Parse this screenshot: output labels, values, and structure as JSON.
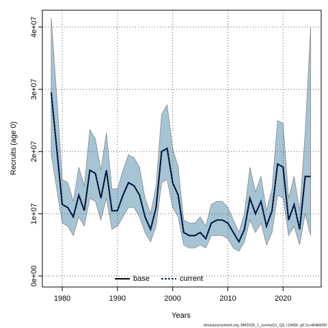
{
  "chart_data": {
    "type": "line",
    "xlabel": "Years",
    "ylabel": "Recruits (age 0)",
    "footnote": "stockassessment.org, BM2026_1_surveyQ1_Q3, r19456, git:1cc464b606f",
    "x": [
      1978,
      1979,
      1980,
      1981,
      1982,
      1983,
      1984,
      1985,
      1986,
      1987,
      1988,
      1989,
      1990,
      1991,
      1992,
      1993,
      1994,
      1995,
      1996,
      1997,
      1998,
      1999,
      2000,
      2001,
      2002,
      2003,
      2004,
      2005,
      2006,
      2007,
      2008,
      2009,
      2010,
      2011,
      2012,
      2013,
      2014,
      2015,
      2016,
      2017,
      2018,
      2019,
      2020,
      2021,
      2022,
      2023,
      2024,
      2025
    ],
    "series": [
      {
        "name": "base",
        "color": "#000000",
        "dashed": false,
        "values": [
          29500000.0,
          20500000.0,
          11500000.0,
          11000000.0,
          9500000.0,
          13000000.0,
          10500000.0,
          17000000.0,
          16500000.0,
          12500000.0,
          17000000.0,
          10500000.0,
          10500000.0,
          13000000.0,
          15000000.0,
          14500000.0,
          13000000.0,
          9500000.0,
          7500000.0,
          11000000.0,
          20000000.0,
          20500000.0,
          15000000.0,
          13000000.0,
          7000000.0,
          6500000.0,
          6500000.0,
          7000000.0,
          6000000.0,
          8500000.0,
          9000000.0,
          9000000.0,
          8500000.0,
          7000000.0,
          5500000.0,
          7500000.0,
          12500000.0,
          10000000.0,
          12000000.0,
          8000000.0,
          10500000.0,
          18000000.0,
          17500000.0,
          9000000.0,
          11500000.0,
          7500000.0,
          16000000.0,
          16000000.0
        ]
      },
      {
        "name": "current",
        "color": "#0a2a6e",
        "dashed": true,
        "values": [
          29500000.0,
          20500000.0,
          11500000.0,
          11000000.0,
          9500000.0,
          13000000.0,
          10500000.0,
          17000000.0,
          16500000.0,
          12500000.0,
          17000000.0,
          10500000.0,
          10500000.0,
          13000000.0,
          15000000.0,
          14500000.0,
          13000000.0,
          9500000.0,
          7500000.0,
          11000000.0,
          20000000.0,
          20500000.0,
          15000000.0,
          13000000.0,
          7000000.0,
          6500000.0,
          6500000.0,
          7000000.0,
          6000000.0,
          8500000.0,
          9000000.0,
          9000000.0,
          8500000.0,
          7000000.0,
          5500000.0,
          7500000.0,
          12500000.0,
          10000000.0,
          12000000.0,
          8000000.0,
          10500000.0,
          18000000.0,
          17500000.0,
          9000000.0,
          11500000.0,
          7500000.0,
          16000000.0,
          16000000.0
        ]
      }
    ],
    "band": {
      "color": "#a5c4d4",
      "upper": [
        41500000.0,
        29000000.0,
        15500000.0,
        15000000.0,
        12000000.0,
        17500000.0,
        14500000.0,
        23500000.0,
        22000000.0,
        17000000.0,
        23000000.0,
        14000000.0,
        14000000.0,
        17000000.0,
        19500000.0,
        19000000.0,
        17500000.0,
        12500000.0,
        10000000.0,
        14500000.0,
        26000000.0,
        27500000.0,
        20500000.0,
        17500000.0,
        9000000.0,
        8500000.0,
        8500000.0,
        9500000.0,
        8000000.0,
        11500000.0,
        12000000.0,
        12000000.0,
        11000000.0,
        9000000.0,
        7000000.0,
        10000000.0,
        17500000.0,
        13500000.0,
        16000000.0,
        10500000.0,
        14000000.0,
        25000000.0,
        24500000.0,
        12500000.0,
        16000000.0,
        10500000.0,
        23000000.0,
        40000000.0
      ],
      "lower": [
        19500000.0,
        14000000.0,
        8500000.0,
        8000000.0,
        6500000.0,
        9500000.0,
        8000000.0,
        12500000.0,
        12000000.0,
        9000000.0,
        12500000.0,
        7500000.0,
        8000000.0,
        9500000.0,
        11000000.0,
        11000000.0,
        9500000.0,
        7000000.0,
        5500000.0,
        8000000.0,
        15000000.0,
        15500000.0,
        11000000.0,
        9500000.0,
        5000000.0,
        4500000.0,
        4500000.0,
        5000000.0,
        4500000.0,
        6500000.0,
        6500000.0,
        6500000.0,
        6000000.0,
        4500000.0,
        4000000.0,
        5500000.0,
        9000000.0,
        7000000.0,
        8500000.0,
        5000000.0,
        7000000.0,
        13000000.0,
        12500000.0,
        6500000.0,
        8000000.0,
        5000000.0,
        10000000.0,
        6500000.0
      ]
    },
    "xlim": [
      1976.4,
      2026.9
    ],
    "ylim": [
      -1760000.0,
      42700000.0
    ],
    "xticks": [
      1980,
      1990,
      2000,
      2010,
      2020
    ],
    "yticks": [
      {
        "value": 0,
        "label": "0e+00"
      },
      {
        "value": 10000000.0,
        "label": "1e+07"
      },
      {
        "value": 20000000.0,
        "label": "2e+07"
      },
      {
        "value": 30000000.0,
        "label": "3e+07"
      },
      {
        "value": 40000000.0,
        "label": "4e+07"
      }
    ],
    "grid": true,
    "legend": "bottom"
  }
}
